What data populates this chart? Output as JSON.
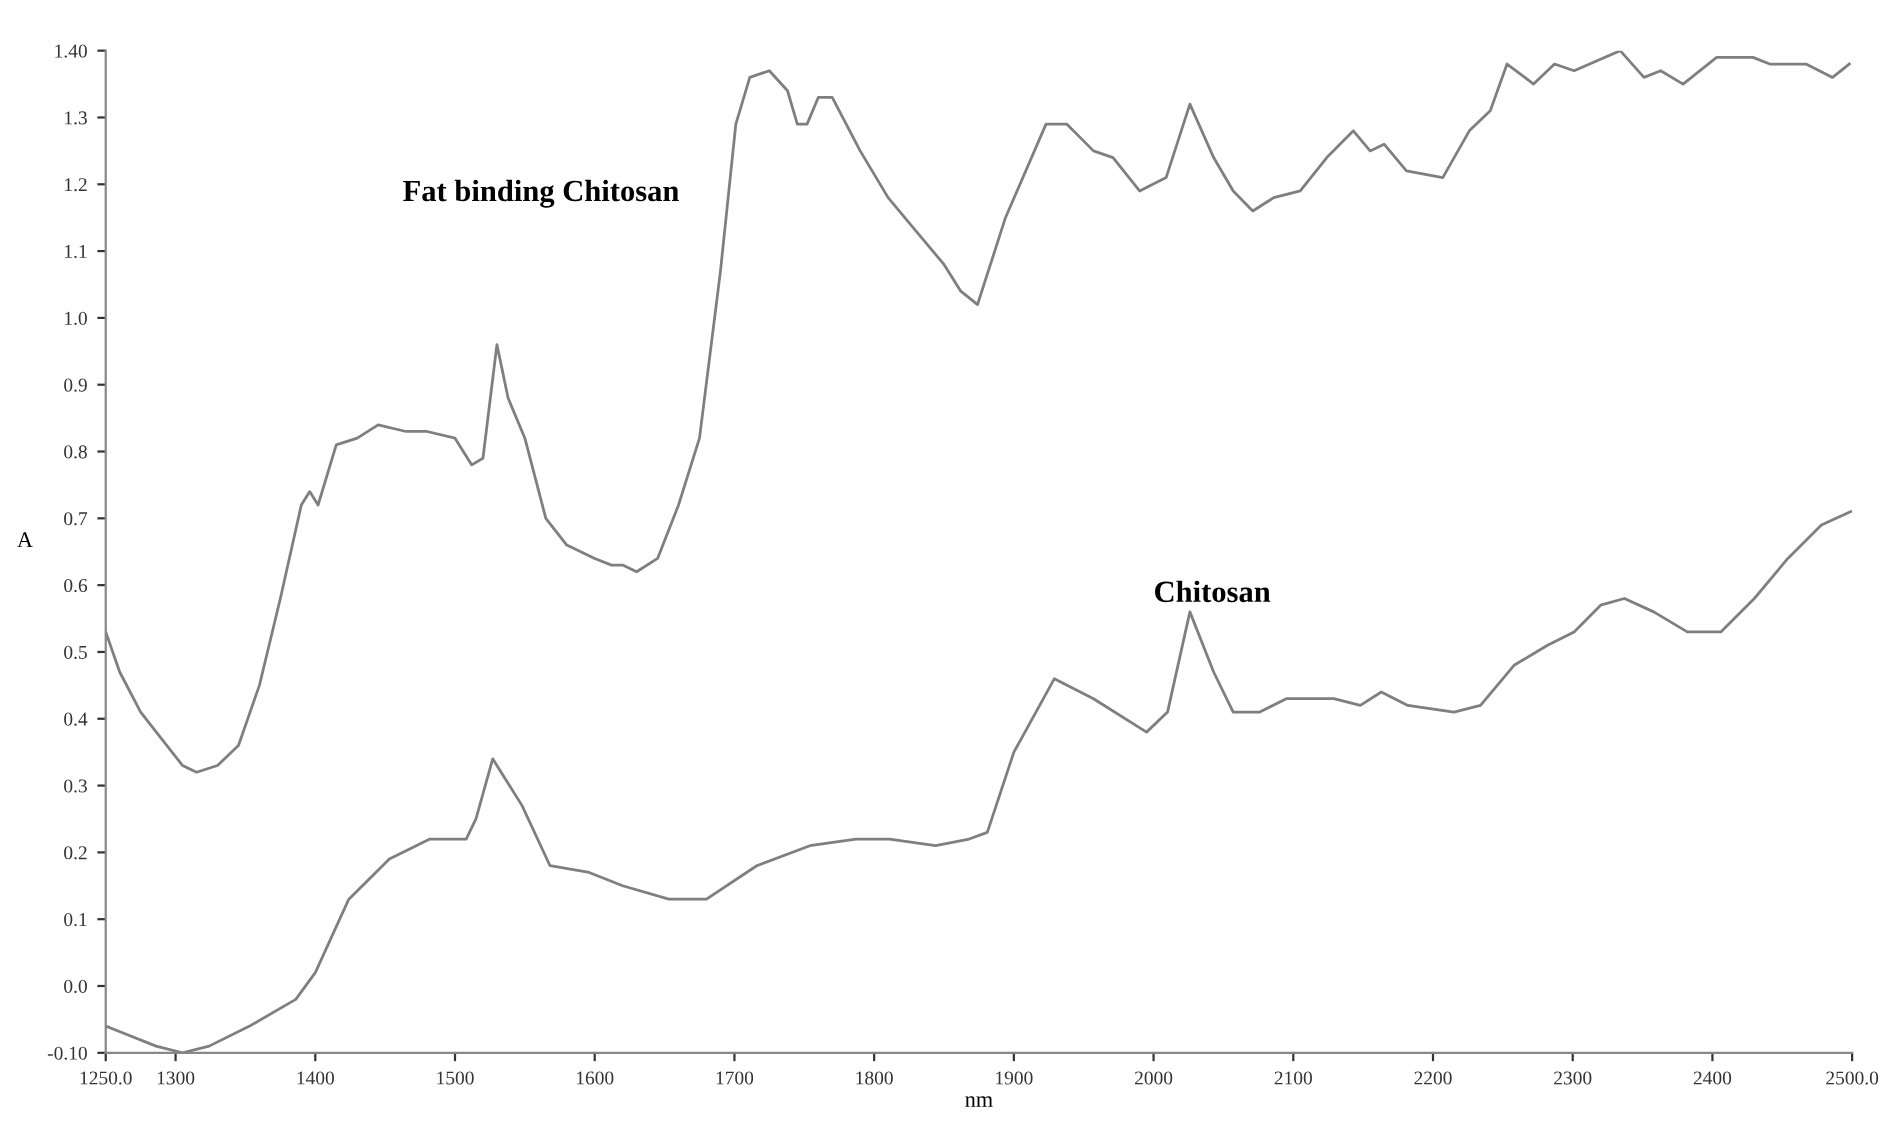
{
  "chart_data": {
    "type": "line",
    "xlabel": "nm",
    "ylabel": "A",
    "xlim": [
      1250,
      2500
    ],
    "ylim": [
      -0.1,
      1.4
    ],
    "xticks": [
      {
        "value": 1250,
        "label": "1250.0"
      },
      1300,
      1400,
      1500,
      1600,
      1700,
      1800,
      1900,
      2000,
      2100,
      2200,
      2300,
      2400,
      {
        "value": 2500,
        "label": "2500.0"
      }
    ],
    "yticks": [
      {
        "value": -0.1,
        "label": "-0.10"
      },
      {
        "value": 0,
        "label": "0.0"
      },
      0.1,
      0.2,
      0.3,
      0.4,
      0.5,
      0.6,
      0.7,
      0.8,
      0.9,
      {
        "value": 1.0,
        "label": "1.0"
      },
      1.1,
      1.2,
      1.3,
      {
        "value": 1.4,
        "label": "1.40"
      }
    ],
    "grid": false,
    "legend": false,
    "marker": "none",
    "line_style": "solid",
    "series": [
      {
        "name": "Fat binding Chitosan",
        "color": "#7f7f7f",
        "x": [
          1250,
          1260,
          1275,
          1290,
          1305,
          1315,
          1330,
          1345,
          1360,
          1375,
          1390,
          1396,
          1402,
          1415,
          1430,
          1445,
          1465,
          1480,
          1500,
          1512,
          1520,
          1530,
          1538,
          1550,
          1565,
          1580,
          1600,
          1612,
          1620,
          1630,
          1645,
          1660,
          1675,
          1690,
          1701,
          1711,
          1725,
          1738,
          1745,
          1752,
          1760,
          1770,
          1790,
          1810,
          1830,
          1850,
          1862,
          1874,
          1894,
          1923,
          1938,
          1957,
          1971,
          1990,
          2009,
          2026,
          2043,
          2057,
          2071,
          2086,
          2105,
          2124,
          2143,
          2155,
          2165,
          2181,
          2207,
          2226,
          2241,
          2253,
          2272,
          2287,
          2301,
          2334,
          2351,
          2363,
          2379,
          2403,
          2429,
          2441,
          2467,
          2486,
          2498
        ],
        "values": [
          0.53,
          0.47,
          0.41,
          0.37,
          0.33,
          0.32,
          0.33,
          0.36,
          0.45,
          0.58,
          0.72,
          0.74,
          0.72,
          0.81,
          0.82,
          0.84,
          0.83,
          0.83,
          0.82,
          0.78,
          0.79,
          0.96,
          0.88,
          0.82,
          0.7,
          0.66,
          0.64,
          0.63,
          0.63,
          0.62,
          0.64,
          0.72,
          0.82,
          1.07,
          1.29,
          1.36,
          1.37,
          1.34,
          1.29,
          1.29,
          1.33,
          1.33,
          1.25,
          1.18,
          1.13,
          1.08,
          1.04,
          1.02,
          1.15,
          1.29,
          1.29,
          1.25,
          1.24,
          1.19,
          1.21,
          1.32,
          1.24,
          1.19,
          1.16,
          1.18,
          1.19,
          1.24,
          1.28,
          1.25,
          1.26,
          1.22,
          1.21,
          1.28,
          1.31,
          1.38,
          1.35,
          1.38,
          1.37,
          1.4,
          1.36,
          1.37,
          1.35,
          1.39,
          1.39,
          1.38,
          1.38,
          1.36,
          1.38
        ]
      },
      {
        "name": "Chitosan",
        "color": "#7f7f7f",
        "x": [
          1250,
          1262,
          1286,
          1305,
          1324,
          1353,
          1386,
          1400,
          1424,
          1453,
          1482,
          1501,
          1508,
          1515,
          1527,
          1548,
          1568,
          1596,
          1620,
          1653,
          1680,
          1716,
          1754,
          1787,
          1811,
          1844,
          1868,
          1881,
          1900,
          1929,
          1957,
          1995,
          2010,
          2026,
          2043,
          2057,
          2076,
          2095,
          2129,
          2148,
          2163,
          2182,
          2215,
          2234,
          2258,
          2282,
          2301,
          2320,
          2337,
          2358,
          2382,
          2406,
          2430,
          2454,
          2478,
          2499
        ],
        "values": [
          -0.06,
          -0.07,
          -0.09,
          -0.1,
          -0.09,
          -0.06,
          -0.02,
          0.02,
          0.13,
          0.19,
          0.22,
          0.22,
          0.22,
          0.25,
          0.34,
          0.27,
          0.18,
          0.17,
          0.15,
          0.13,
          0.13,
          0.18,
          0.21,
          0.22,
          0.22,
          0.21,
          0.22,
          0.23,
          0.35,
          0.46,
          0.43,
          0.38,
          0.41,
          0.56,
          0.47,
          0.41,
          0.41,
          0.43,
          0.43,
          0.42,
          0.44,
          0.42,
          0.41,
          0.42,
          0.48,
          0.51,
          0.53,
          0.57,
          0.58,
          0.56,
          0.53,
          0.53,
          0.58,
          0.64,
          0.69,
          0.71
        ]
      }
    ]
  }
}
